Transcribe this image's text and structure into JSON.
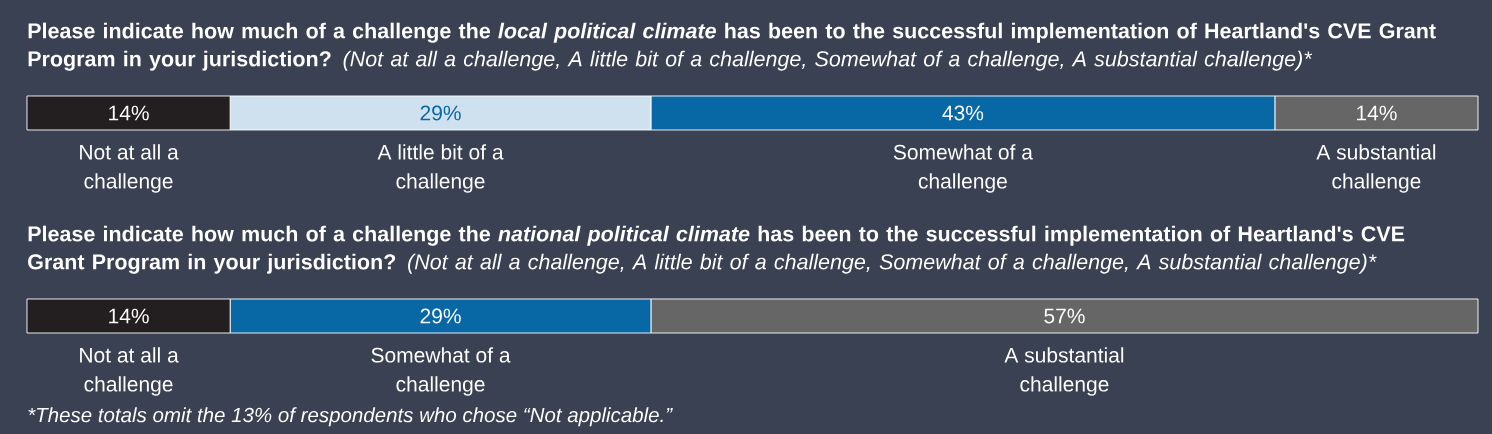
{
  "chart_data": [
    {
      "type": "bar",
      "orientation": "horizontal",
      "stacked": true,
      "title": "Please indicate how much of a challenge the *local political climate* has been to the successful implementation of Heartland's CVE Grant Program in your jurisdiction?",
      "subtitle": "(Not at all a challenge, A little bit of a challenge, Somewhat of a challenge, A substantial challenge)*",
      "categories": [
        null
      ],
      "xlim": [
        0,
        100
      ],
      "tick_labels": false,
      "series": [
        {
          "name": "Not at all a challenge",
          "color": "#231f20",
          "values": [
            14
          ],
          "value_labels": [
            "14%"
          ]
        },
        {
          "name": "A little bit of a challenge",
          "color": "#cfe1ef",
          "values": [
            29
          ],
          "value_labels": [
            "29%"
          ]
        },
        {
          "name": "Somewhat of a challenge",
          "color": "#0868a6",
          "values": [
            43
          ],
          "value_labels": [
            "43%"
          ]
        },
        {
          "name": "A substantial challenge",
          "color": "#666666",
          "values": [
            14
          ],
          "value_labels": [
            "14%"
          ]
        }
      ]
    },
    {
      "type": "bar",
      "orientation": "horizontal",
      "stacked": true,
      "title": "Please indicate how much of a challenge the *national political climate* has been to the successful implementation of Heartland's CVE Grant Program in your jurisdiction?",
      "subtitle": "(Not at all a challenge, A little bit of a challenge, Somewhat of a challenge, A substantial challenge)*",
      "categories": [
        null
      ],
      "xlim": [
        0,
        100
      ],
      "tick_labels": false,
      "series": [
        {
          "name": "Not at all a challenge",
          "color": "#231f20",
          "values": [
            14
          ],
          "value_labels": [
            "14%"
          ]
        },
        {
          "name": "Somewhat of a challenge",
          "color": "#0868a6",
          "values": [
            29
          ],
          "value_labels": [
            "29%"
          ]
        },
        {
          "name": "A substantial challenge",
          "color": "#666666",
          "values": [
            57
          ],
          "value_labels": [
            "57%"
          ]
        }
      ],
      "annotations": [
        "*These totals omit the 13% of respondents who chose “Not applicable.”"
      ]
    }
  ]
}
